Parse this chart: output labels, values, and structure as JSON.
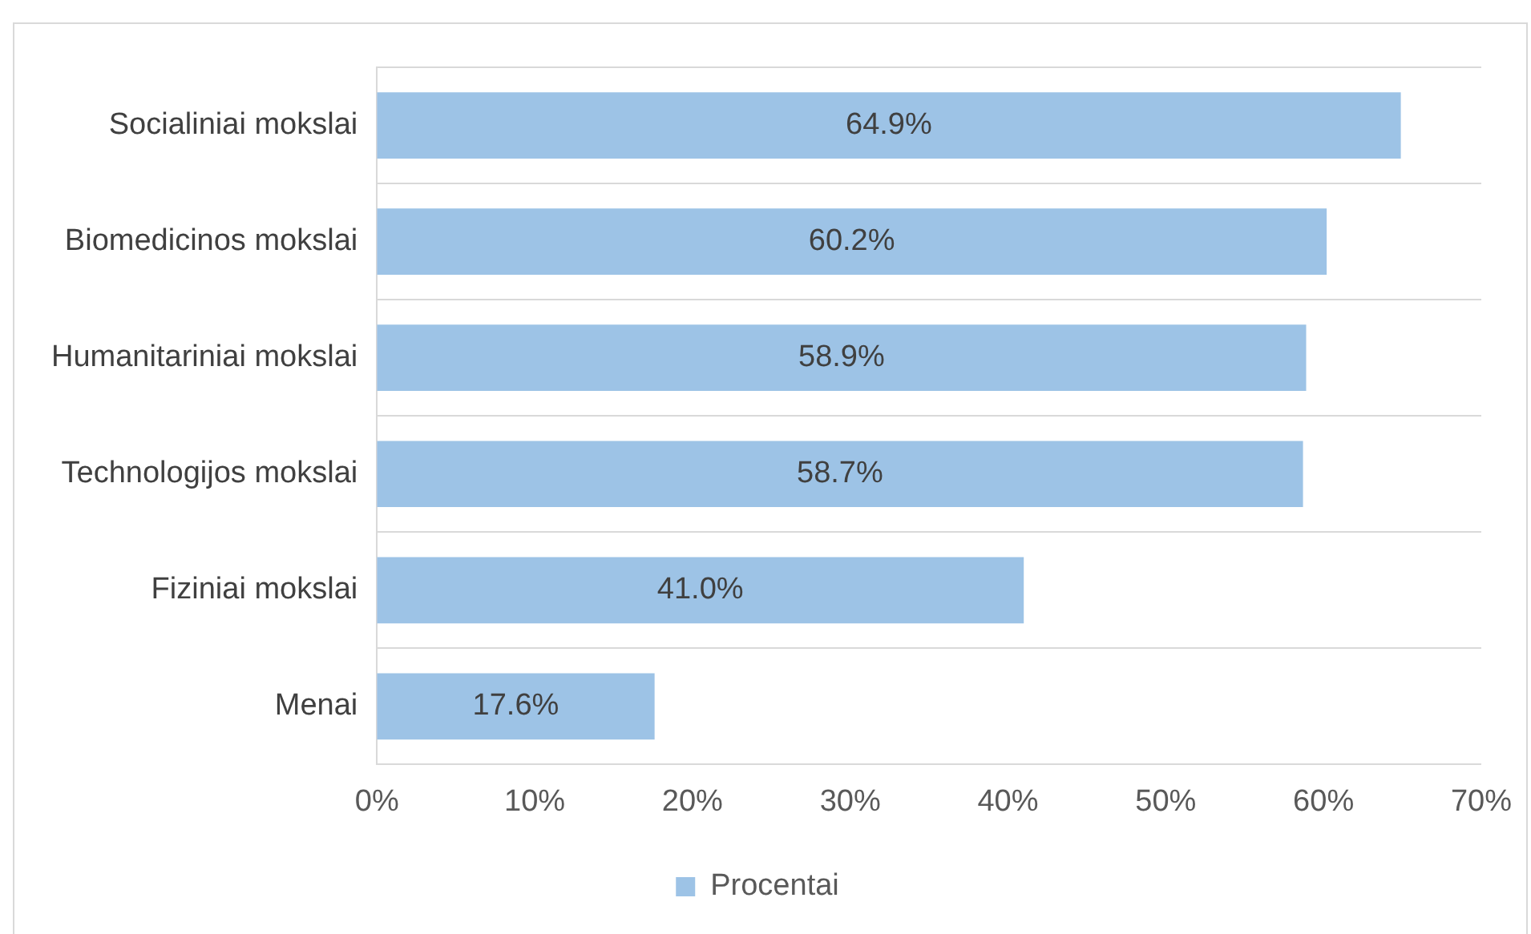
{
  "chart_data": {
    "type": "bar",
    "orientation": "horizontal",
    "categories": [
      "Socialiniai mokslai",
      "Biomedicinos mokslai",
      "Humanitariniai mokslai",
      "Technologijos mokslai",
      "Fiziniai mokslai",
      "Menai"
    ],
    "series": [
      {
        "name": "Procentai",
        "color": "#9dc3e6",
        "values": [
          64.9,
          60.2,
          58.9,
          58.7,
          41.0,
          17.6
        ],
        "value_labels": [
          "64.9%",
          "60.2%",
          "58.9%",
          "58.7%",
          "41.0%",
          "17.6%"
        ]
      }
    ],
    "xlim": [
      0,
      70
    ],
    "xticks": [
      {
        "value": 0,
        "label": "0%"
      },
      {
        "value": 10,
        "label": "10%"
      },
      {
        "value": 20,
        "label": "20%"
      },
      {
        "value": 30,
        "label": "30%"
      },
      {
        "value": 40,
        "label": "40%"
      },
      {
        "value": 50,
        "label": "50%"
      },
      {
        "value": 60,
        "label": "60%"
      },
      {
        "value": 70,
        "label": "70%"
      }
    ],
    "grid": "y",
    "legend": "bottom"
  }
}
